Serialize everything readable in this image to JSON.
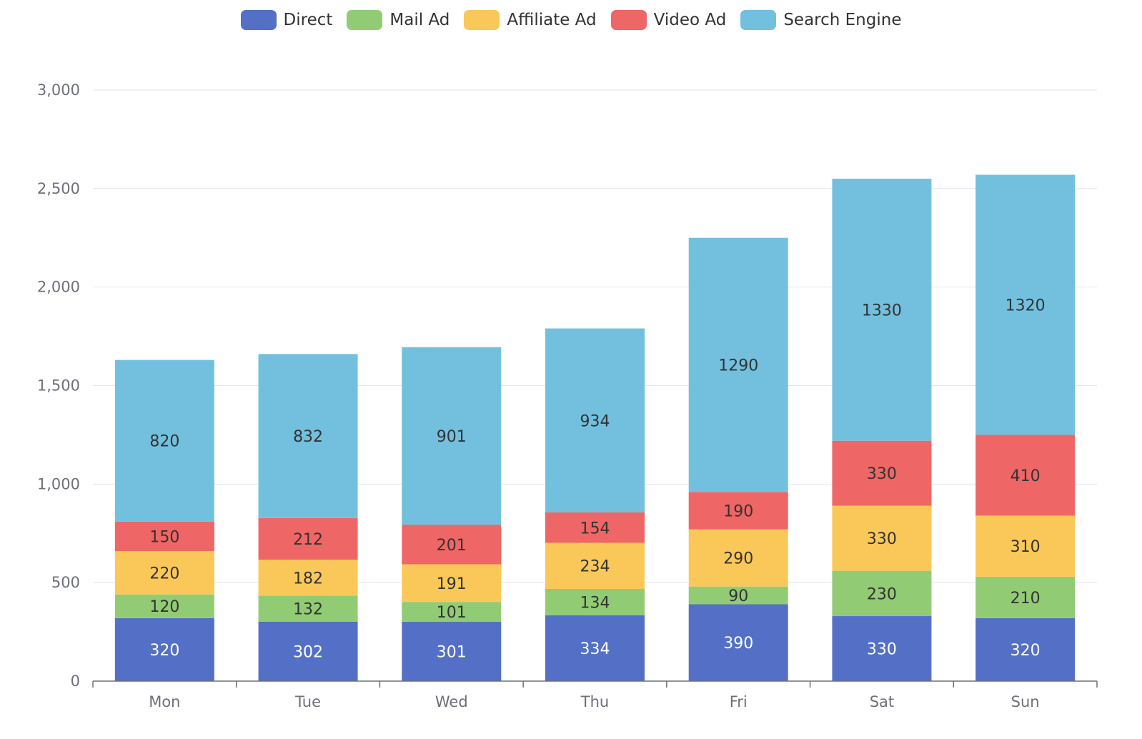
{
  "chart_data": {
    "type": "bar",
    "stacked": true,
    "categories": [
      "Mon",
      "Tue",
      "Wed",
      "Thu",
      "Fri",
      "Sat",
      "Sun"
    ],
    "series": [
      {
        "name": "Direct",
        "color": "#5470c6",
        "label_color": "#ffffff",
        "values": [
          320,
          302,
          301,
          334,
          390,
          330,
          320
        ]
      },
      {
        "name": "Mail Ad",
        "color": "#91cc75",
        "label_color": "#333333",
        "values": [
          120,
          132,
          101,
          134,
          90,
          230,
          210
        ]
      },
      {
        "name": "Affiliate Ad",
        "color": "#fac858",
        "label_color": "#333333",
        "values": [
          220,
          182,
          191,
          234,
          290,
          330,
          310
        ]
      },
      {
        "name": "Video Ad",
        "color": "#ee6666",
        "label_color": "#333333",
        "values": [
          150,
          212,
          201,
          154,
          190,
          330,
          410
        ]
      },
      {
        "name": "Search Engine",
        "color": "#73c0de",
        "label_color": "#333333",
        "values": [
          820,
          832,
          901,
          934,
          1290,
          1330,
          1320
        ]
      }
    ],
    "y_ticks": [
      "0",
      "500",
      "1,000",
      "1,500",
      "2,000",
      "2,500",
      "3,000"
    ],
    "ylim": [
      0,
      3000
    ],
    "grid": true,
    "legend_position": "top-center",
    "title": "",
    "xlabel": "",
    "ylabel": ""
  }
}
